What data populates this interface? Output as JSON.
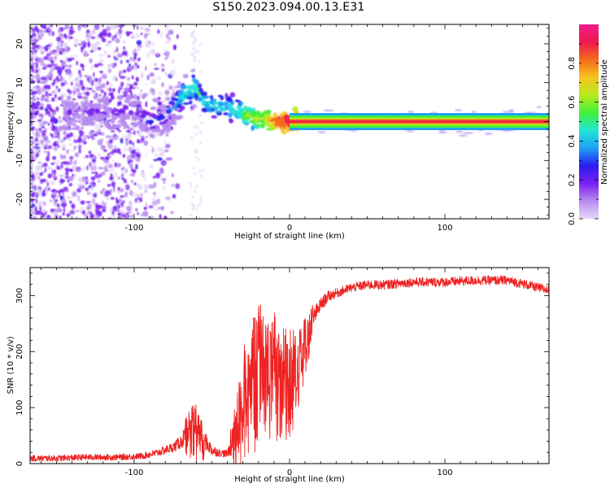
{
  "title": "S150.2023.094.00.13.E31",
  "chart_data": [
    {
      "type": "heatmap",
      "xlabel": "Height of straight line (km)",
      "ylabel": "Frequency (Hz)",
      "xlim": [
        -167,
        167
      ],
      "ylim": [
        -25,
        25
      ],
      "xticks": [
        -100,
        0,
        100
      ],
      "yticks": [
        -20,
        -10,
        0,
        10,
        20
      ],
      "grid": false,
      "colorbar": {
        "label": "Normalized spectral amplitude",
        "range": [
          0.0,
          1.0
        ],
        "ticks": [
          0.0,
          0.2,
          0.4,
          0.6,
          0.8
        ],
        "colors": [
          "#e6d8f7",
          "#b88cf0",
          "#7a1ff2",
          "#2a1cf2",
          "#1fa0f5",
          "#20e6d8",
          "#3ff03a",
          "#b8ea1f",
          "#f5c51f",
          "#f56a1a",
          "#f0194f",
          "#f01a8c"
        ]
      },
      "ridge": {
        "x": [
          -140,
          -120,
          -100,
          -90,
          -80,
          -75,
          -70,
          -65,
          -60,
          -55,
          -50,
          -45,
          -40,
          -35,
          -30,
          -25,
          -20,
          -15,
          -10,
          -5,
          0,
          10,
          50,
          100,
          167
        ],
        "y": [
          2,
          2.5,
          3,
          0,
          1,
          4,
          6,
          8,
          9,
          5,
          4.5,
          4,
          4,
          3,
          2,
          1.5,
          0.5,
          1,
          0,
          0.3,
          0,
          0,
          0,
          0,
          0
        ],
        "amplitude": [
          0.15,
          0.15,
          0.2,
          0.3,
          0.3,
          0.35,
          0.45,
          0.5,
          0.5,
          0.45,
          0.45,
          0.45,
          0.45,
          0.5,
          0.55,
          0.6,
          0.65,
          0.7,
          0.85,
          0.9,
          0.95,
          0.95,
          0.95,
          0.95,
          0.95
        ]
      }
    },
    {
      "type": "line",
      "xlabel": "Height of straight line (km)",
      "ylabel": "SNR (10 * v/v)",
      "xlim": [
        -167,
        167
      ],
      "ylim": [
        0,
        350
      ],
      "xticks": [
        -100,
        0,
        100
      ],
      "yticks": [
        0,
        100,
        200,
        300
      ],
      "grid": false,
      "series": [
        {
          "color": "#ee2222",
          "x": [
            -167,
            -150,
            -130,
            -110,
            -95,
            -85,
            -75,
            -70,
            -65,
            -62,
            -60,
            -58,
            -55,
            -50,
            -45,
            -40,
            -35,
            -30,
            -28,
            -25,
            -20,
            -15,
            -10,
            -5,
            0,
            5,
            10,
            15,
            20,
            25,
            30,
            40,
            50,
            60,
            80,
            100,
            120,
            140,
            150,
            160,
            167
          ],
          "y": [
            10,
            10,
            12,
            12,
            14,
            20,
            30,
            40,
            60,
            70,
            65,
            55,
            45,
            25,
            20,
            18,
            60,
            100,
            140,
            160,
            175,
            185,
            180,
            170,
            165,
            185,
            215,
            260,
            285,
            300,
            305,
            315,
            320,
            320,
            325,
            325,
            328,
            328,
            322,
            315,
            310
          ],
          "spread": [
            8,
            8,
            8,
            8,
            8,
            10,
            12,
            18,
            30,
            40,
            40,
            30,
            25,
            15,
            10,
            10,
            50,
            80,
            90,
            100,
            100,
            90,
            90,
            80,
            80,
            60,
            40,
            25,
            18,
            14,
            12,
            12,
            12,
            12,
            12,
            12,
            12,
            12,
            12,
            12,
            12
          ]
        }
      ]
    }
  ]
}
